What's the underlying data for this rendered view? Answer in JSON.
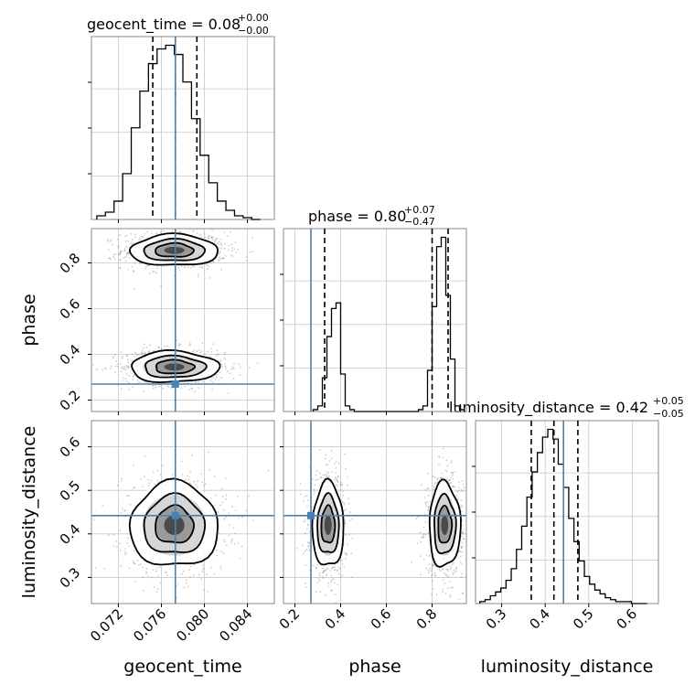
{
  "chart_data": [
    {
      "type": "histogram",
      "panel": "geocent_time",
      "title": "geocent_time = 0.08",
      "title_sup": "+0.00",
      "title_sub": "−0.00",
      "x_range": [
        0.0695,
        0.0865
      ],
      "bins": [
        0.07,
        0.0708,
        0.0716,
        0.0724,
        0.0732,
        0.074,
        0.0748,
        0.0756,
        0.0764,
        0.0772,
        0.078,
        0.0788,
        0.0796,
        0.0804,
        0.0812,
        0.082,
        0.0828,
        0.0836,
        0.0844,
        0.0852
      ],
      "counts": [
        2,
        4,
        10,
        25,
        50,
        70,
        85,
        93,
        95,
        90,
        75,
        55,
        35,
        20,
        10,
        5,
        2,
        1,
        0
      ],
      "quantiles": [
        0.0752,
        0.0773,
        0.0793
      ],
      "truth": 0.0773,
      "grid": true
    },
    {
      "type": "histogram",
      "panel": "phase",
      "title": "phase = 0.80",
      "title_sup": "+0.07",
      "title_sub": "−0.47",
      "x_range": [
        0.15,
        0.95
      ],
      "bins": [
        0.28,
        0.3,
        0.32,
        0.34,
        0.36,
        0.38,
        0.4,
        0.42,
        0.44,
        0.46,
        0.48,
        0.5,
        0.52,
        0.54,
        0.56,
        0.58,
        0.6,
        0.62,
        0.64,
        0.66,
        0.68,
        0.7,
        0.72,
        0.74,
        0.76,
        0.78,
        0.8,
        0.82,
        0.84,
        0.86,
        0.88,
        0.9,
        0.92,
        0.94
      ],
      "counts": [
        1,
        3,
        18,
        40,
        55,
        58,
        20,
        3,
        1,
        0,
        0,
        0,
        0,
        0,
        0,
        0,
        0,
        0,
        0,
        0,
        0,
        0,
        0,
        1,
        3,
        22,
        56,
        88,
        93,
        62,
        28,
        3,
        1
      ],
      "quantiles": [
        0.33,
        0.8,
        0.87
      ],
      "truth": 0.27,
      "grid": true
    },
    {
      "type": "histogram",
      "panel": "luminosity_distance",
      "title": "luminosity_distance = 0.42",
      "title_sup": "+0.05",
      "title_sub": "−0.05",
      "x_range": [
        0.24,
        0.66
      ],
      "bins": [
        0.25,
        0.262,
        0.274,
        0.286,
        0.298,
        0.31,
        0.322,
        0.334,
        0.346,
        0.358,
        0.37,
        0.382,
        0.394,
        0.406,
        0.418,
        0.43,
        0.442,
        0.454,
        0.466,
        0.478,
        0.49,
        0.502,
        0.514,
        0.526,
        0.538,
        0.55,
        0.562,
        0.574,
        0.586,
        0.598,
        0.61,
        0.622,
        0.634
      ],
      "counts": [
        1,
        2,
        4,
        6,
        8,
        12,
        18,
        28,
        40,
        55,
        68,
        78,
        86,
        90,
        85,
        72,
        60,
        44,
        32,
        22,
        14,
        10,
        7,
        5,
        3,
        2,
        1,
        1,
        1,
        0,
        0,
        0
      ],
      "quantiles": [
        0.368,
        0.42,
        0.475
      ],
      "truth": 0.442,
      "grid": true
    },
    {
      "type": "contour",
      "panel": "phase vs geocent_time",
      "xlabel": "",
      "ylabel": "phase",
      "x_range": [
        0.0695,
        0.0865
      ],
      "y_range": [
        0.15,
        0.95
      ],
      "y_ticks": [
        0.2,
        0.4,
        0.6,
        0.8
      ],
      "modes": [
        {
          "cx": 0.0772,
          "cy": 0.855,
          "sx": 0.0021,
          "sy": 0.035
        },
        {
          "cx": 0.0772,
          "cy": 0.345,
          "sx": 0.0021,
          "sy": 0.035
        }
      ],
      "truth": [
        0.0773,
        0.27
      ],
      "grid": true
    },
    {
      "type": "contour",
      "panel": "luminosity_distance vs geocent_time",
      "xlabel": "geocent_time",
      "ylabel": "luminosity_distance",
      "x_range": [
        0.0695,
        0.0865
      ],
      "y_range": [
        0.24,
        0.66
      ],
      "x_ticks": [
        0.072,
        0.076,
        0.08,
        0.084
      ],
      "x_tick_labels": [
        "0.072",
        "0.076",
        "0.080",
        "0.084"
      ],
      "y_ticks": [
        0.3,
        0.4,
        0.5,
        0.6
      ],
      "modes": [
        {
          "cx": 0.0772,
          "cy": 0.42,
          "sx": 0.0021,
          "sy": 0.05
        }
      ],
      "truth": [
        0.0773,
        0.442
      ],
      "grid": true
    },
    {
      "type": "contour",
      "panel": "luminosity_distance vs phase",
      "xlabel": "phase",
      "ylabel": "",
      "x_range": [
        0.15,
        0.95
      ],
      "y_range": [
        0.24,
        0.66
      ],
      "x_ticks": [
        0.2,
        0.4,
        0.6,
        0.8
      ],
      "modes": [
        {
          "cx": 0.345,
          "cy": 0.42,
          "sx": 0.035,
          "sy": 0.05
        },
        {
          "cx": 0.855,
          "cy": 0.42,
          "sx": 0.035,
          "sy": 0.05
        }
      ],
      "truth": [
        0.27,
        0.442
      ],
      "grid": true
    }
  ],
  "x_labels": [
    "geocent_time",
    "phase",
    "luminosity_distance"
  ],
  "y_labels": [
    "phase",
    "luminosity_distance"
  ],
  "lum_x_ticks": [
    0.3,
    0.4,
    0.5,
    0.6
  ],
  "colors": {
    "truth": "#4682b4",
    "hist": "#000000",
    "grid": "#c8c8c8",
    "axes": "#8a8a8a"
  }
}
